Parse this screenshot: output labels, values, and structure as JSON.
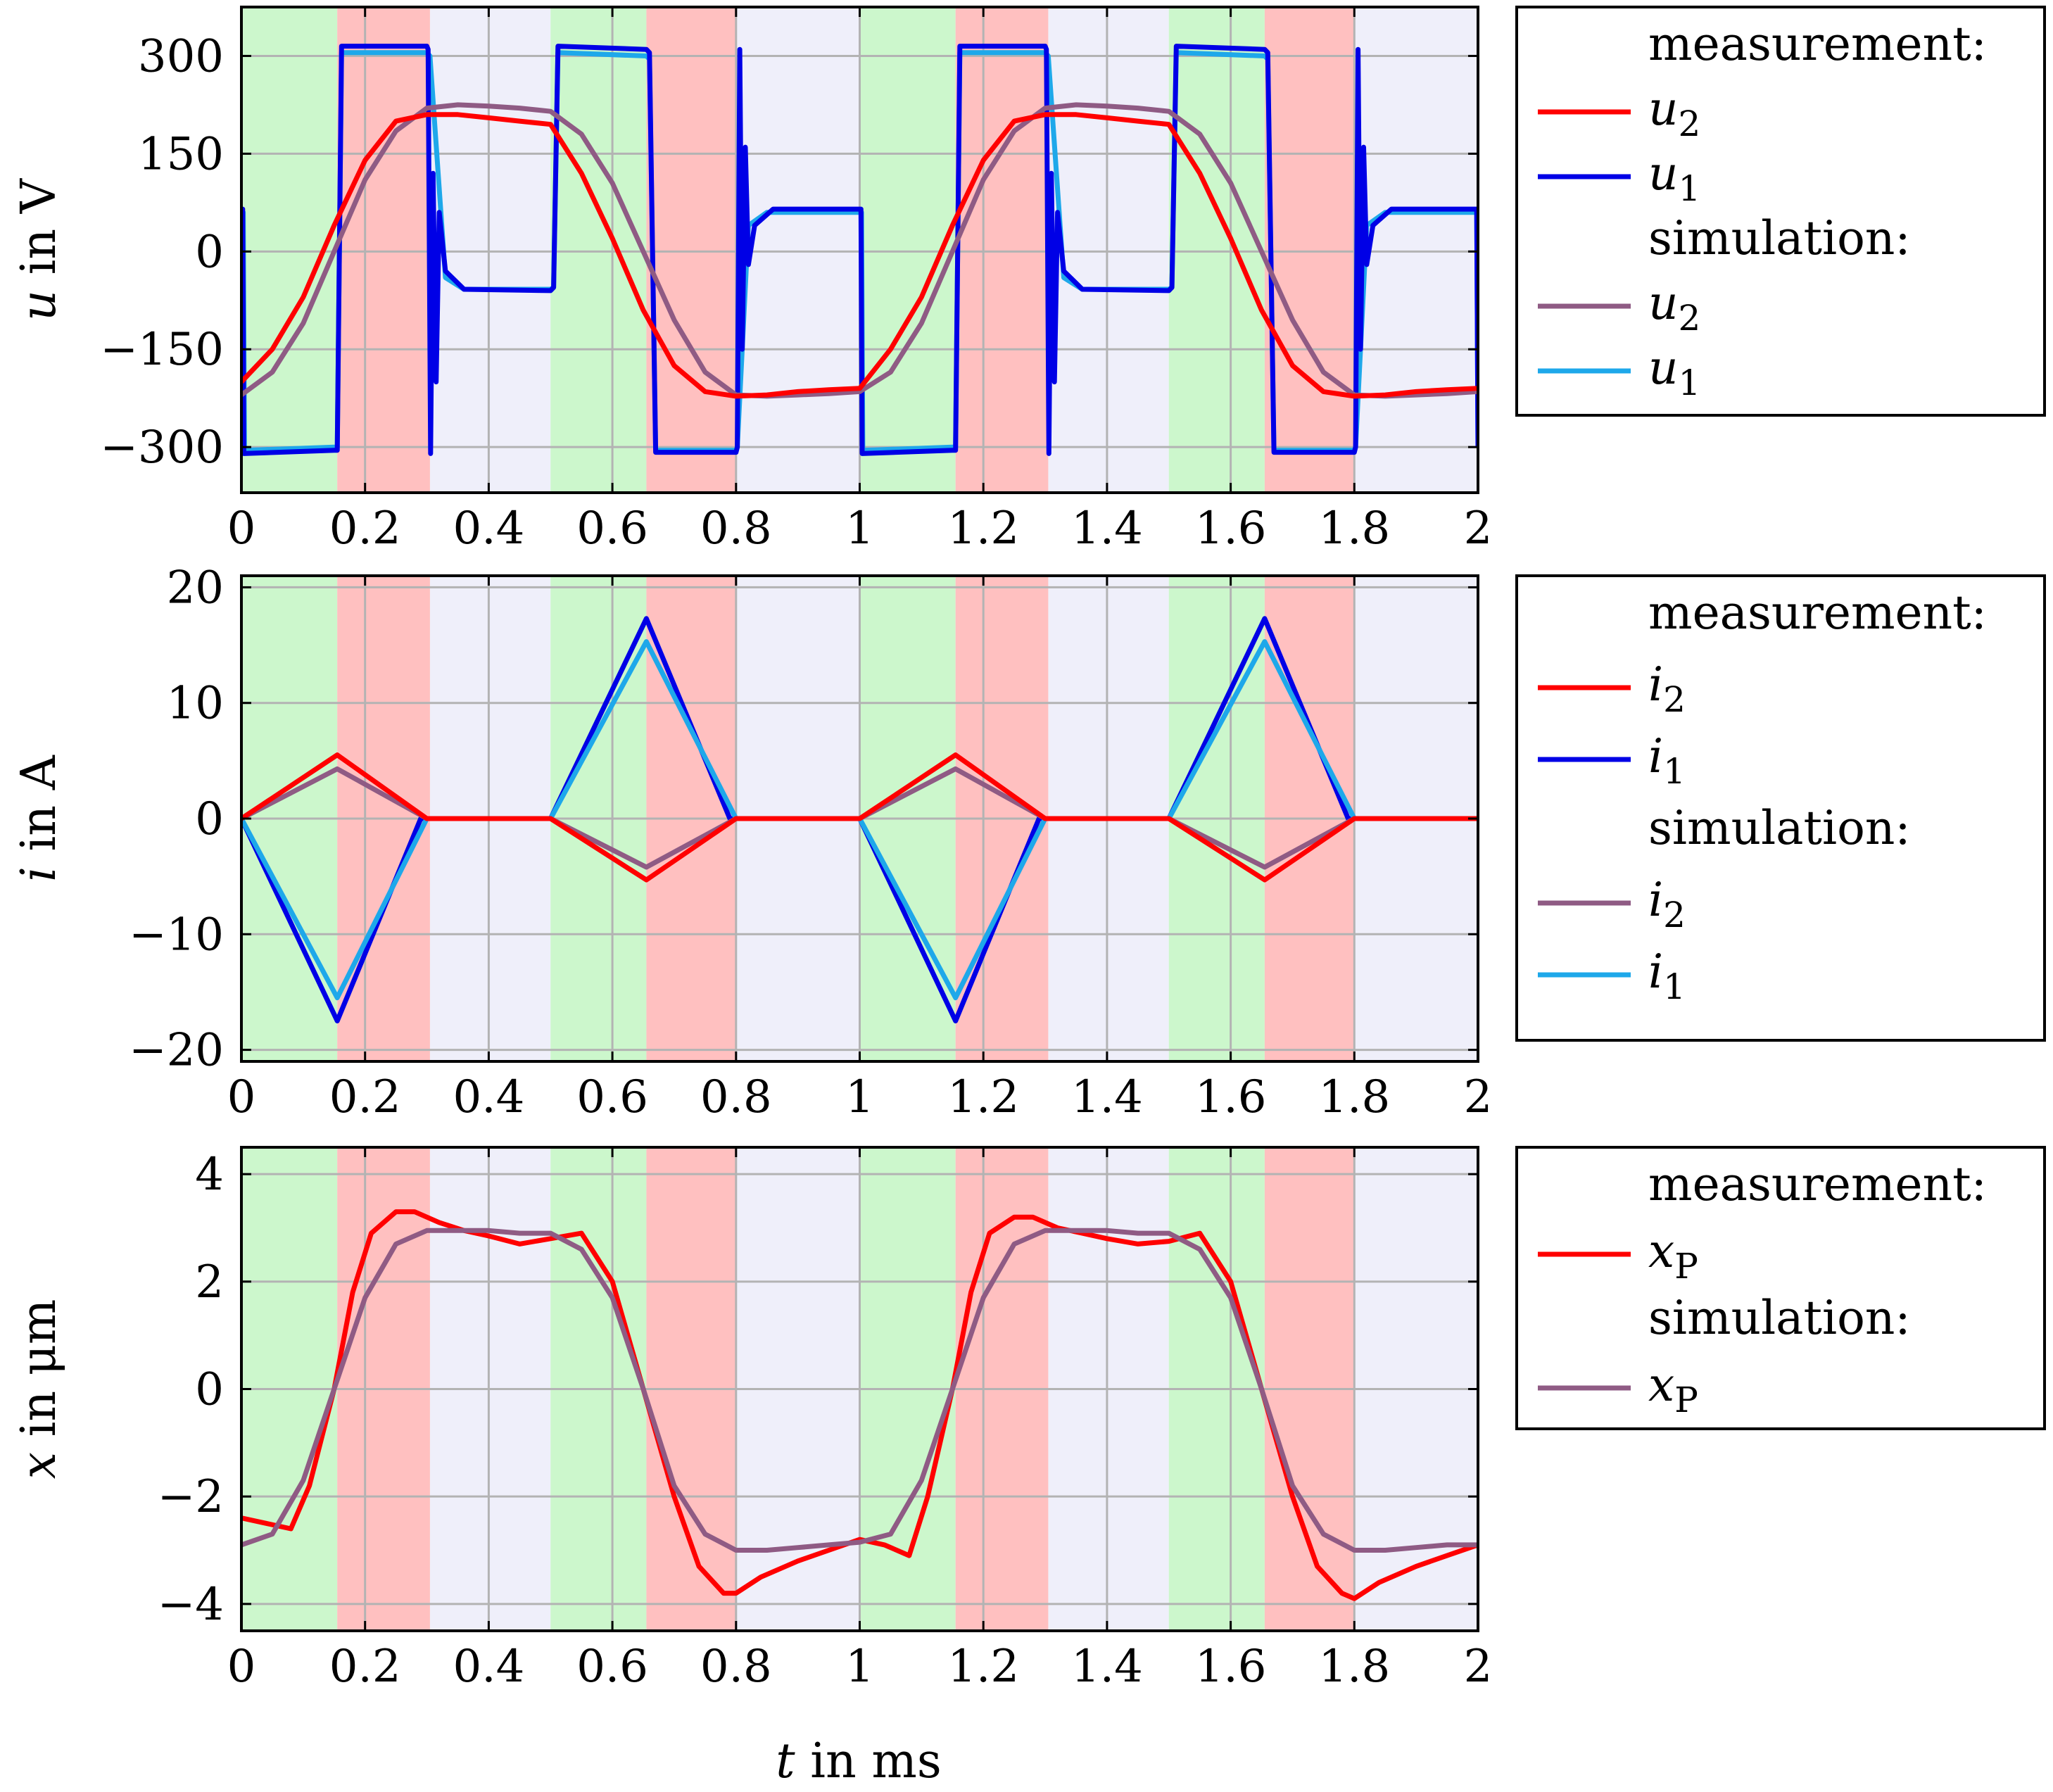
{
  "figure": {
    "xlabel_var": "t",
    "xlabel_unit": " in ms"
  },
  "phases": {
    "period_ms": 1.0,
    "pattern": [
      {
        "name": "green",
        "start": 0.0,
        "end": 0.155,
        "color": "#ccf7cc"
      },
      {
        "name": "red",
        "start": 0.155,
        "end": 0.305,
        "color": "#ffc0c0"
      },
      {
        "name": "lavender",
        "start": 0.305,
        "end": 0.5,
        "color": "#efeffa"
      },
      {
        "name": "green",
        "start": 0.5,
        "end": 0.655,
        "color": "#ccf7cc"
      },
      {
        "name": "red",
        "start": 0.655,
        "end": 0.8,
        "color": "#ffc0c0"
      },
      {
        "name": "lavender",
        "start": 0.8,
        "end": 1.0,
        "color": "#efeffa"
      }
    ]
  },
  "chart_data": [
    {
      "type": "line",
      "id": "voltage",
      "ylabel_var": "u",
      "ylabel_unit": " in V",
      "xlim": [
        0,
        2
      ],
      "ylim": [
        -370,
        375
      ],
      "xticks": [
        0,
        0.2,
        0.4,
        0.6,
        0.8,
        1,
        1.2,
        1.4,
        1.6,
        1.8,
        2
      ],
      "xtick_labels": [
        "0",
        "0.2",
        "0.4",
        "0.6",
        "0.8",
        "1",
        "1.2",
        "1.4",
        "1.6",
        "1.8",
        "2"
      ],
      "yticks": [
        -300,
        -150,
        0,
        150,
        300
      ],
      "ytick_labels": [
        "−300",
        "−150",
        "0",
        "150",
        "300"
      ],
      "legend": {
        "placement": "right",
        "measurement_label": "measurement:",
        "simulation_label": "simulation:",
        "measurement": [
          {
            "sym": "u",
            "sub": "2",
            "color": "#ff0000"
          },
          {
            "sym": "u",
            "sub": "1",
            "color": "#0000e6"
          }
        ],
        "simulation": [
          {
            "sym": "u",
            "sub": "2",
            "color": "#8f5b84"
          },
          {
            "sym": "u",
            "sub": "1",
            "color": "#1ea8ea"
          }
        ]
      },
      "series": [
        {
          "name": "u1 simulation",
          "color": "#1ea8ea",
          "x": [
            0,
            0.003,
            0.005,
            0.15,
            0.155,
            0.162,
            0.3,
            0.305,
            0.33,
            0.36,
            0.5,
            0.505,
            0.512,
            0.655,
            0.66,
            0.67,
            0.8,
            0.802,
            0.82,
            0.85,
            1.0,
            1.003,
            1.005,
            1.15,
            1.155,
            1.162,
            1.3,
            1.305,
            1.33,
            1.36,
            1.5,
            1.505,
            1.512,
            1.655,
            1.66,
            1.67,
            1.8,
            1.802,
            1.82,
            1.85,
            1.998,
            2.0
          ],
          "y": [
            60,
            60,
            -305,
            -300,
            -300,
            305,
            305,
            300,
            -40,
            -58,
            -58,
            -55,
            305,
            300,
            295,
            -305,
            -305,
            -300,
            40,
            60,
            60,
            60,
            -305,
            -300,
            -300,
            305,
            305,
            300,
            -40,
            -58,
            -58,
            -55,
            305,
            300,
            295,
            -305,
            -305,
            -300,
            40,
            60,
            60,
            -300
          ]
        },
        {
          "name": "u1 measurement",
          "color": "#0000e6",
          "x": [
            0,
            0.002,
            0.004,
            0.15,
            0.155,
            0.162,
            0.3,
            0.302,
            0.306,
            0.31,
            0.315,
            0.32,
            0.33,
            0.36,
            0.5,
            0.505,
            0.512,
            0.655,
            0.66,
            0.67,
            0.8,
            0.802,
            0.806,
            0.81,
            0.815,
            0.82,
            0.83,
            0.86,
            1.0,
            1.002,
            1.004,
            1.15,
            1.155,
            1.162,
            1.3,
            1.302,
            1.306,
            1.31,
            1.315,
            1.32,
            1.33,
            1.36,
            1.5,
            1.505,
            1.512,
            1.655,
            1.66,
            1.67,
            1.8,
            1.802,
            1.806,
            1.81,
            1.815,
            1.82,
            1.83,
            1.86,
            1.998,
            2.0
          ],
          "y": [
            65,
            65,
            -310,
            -305,
            -305,
            315,
            315,
            310,
            -310,
            120,
            -200,
            60,
            -30,
            -58,
            -60,
            -55,
            315,
            310,
            305,
            -308,
            -308,
            -300,
            310,
            -150,
            160,
            -20,
            40,
            65,
            65,
            65,
            -310,
            -305,
            -305,
            315,
            315,
            310,
            -310,
            120,
            -200,
            60,
            -30,
            -58,
            -60,
            -55,
            315,
            310,
            305,
            -308,
            -308,
            -300,
            310,
            -150,
            160,
            -20,
            40,
            65,
            65,
            -300
          ]
        },
        {
          "name": "u2 simulation",
          "color": "#8f5b84",
          "x": [
            0,
            0.05,
            0.1,
            0.15,
            0.2,
            0.25,
            0.3,
            0.35,
            0.4,
            0.45,
            0.5,
            0.55,
            0.6,
            0.65,
            0.7,
            0.75,
            0.8,
            0.85,
            0.9,
            0.95,
            1.0,
            1.05,
            1.1,
            1.15,
            1.2,
            1.25,
            1.3,
            1.35,
            1.4,
            1.45,
            1.5,
            1.55,
            1.6,
            1.65,
            1.7,
            1.75,
            1.8,
            1.85,
            1.9,
            1.95,
            2.0
          ],
          "y": [
            -220,
            -185,
            -110,
            0,
            110,
            185,
            220,
            225,
            223,
            220,
            215,
            180,
            105,
            0,
            -105,
            -185,
            -220,
            -222,
            -220,
            -218,
            -215,
            -185,
            -110,
            0,
            110,
            185,
            220,
            225,
            223,
            220,
            215,
            180,
            105,
            0,
            -105,
            -185,
            -220,
            -222,
            -220,
            -218,
            -215
          ]
        },
        {
          "name": "u2 measurement",
          "color": "#ff0000",
          "x": [
            0,
            0.05,
            0.1,
            0.15,
            0.2,
            0.25,
            0.3,
            0.35,
            0.4,
            0.45,
            0.5,
            0.55,
            0.6,
            0.65,
            0.7,
            0.75,
            0.8,
            0.85,
            0.9,
            0.95,
            1.0,
            1.05,
            1.1,
            1.15,
            1.2,
            1.25,
            1.3,
            1.35,
            1.4,
            1.45,
            1.5,
            1.55,
            1.6,
            1.65,
            1.7,
            1.75,
            1.8,
            1.85,
            1.9,
            1.95,
            2.0
          ],
          "y": [
            -200,
            -150,
            -70,
            40,
            140,
            200,
            210,
            210,
            205,
            200,
            195,
            120,
            20,
            -90,
            -175,
            -215,
            -222,
            -220,
            -215,
            -212,
            -210,
            -150,
            -70,
            40,
            140,
            200,
            210,
            210,
            205,
            200,
            195,
            120,
            20,
            -90,
            -175,
            -215,
            -222,
            -220,
            -215,
            -212,
            -210
          ]
        }
      ]
    },
    {
      "type": "line",
      "id": "current",
      "ylabel_var": "i",
      "ylabel_unit": " in A",
      "xlim": [
        0,
        2
      ],
      "ylim": [
        -21,
        21
      ],
      "xticks": [
        0,
        0.2,
        0.4,
        0.6,
        0.8,
        1,
        1.2,
        1.4,
        1.6,
        1.8,
        2
      ],
      "xtick_labels": [
        "0",
        "0.2",
        "0.4",
        "0.6",
        "0.8",
        "1",
        "1.2",
        "1.4",
        "1.6",
        "1.8",
        "2"
      ],
      "yticks": [
        -20,
        -10,
        0,
        10,
        20
      ],
      "ytick_labels": [
        "−20",
        "−10",
        "0",
        "10",
        "20"
      ],
      "legend": {
        "placement": "right",
        "measurement_label": "measurement:",
        "simulation_label": "simulation:",
        "measurement": [
          {
            "sym": "i",
            "sub": "2",
            "color": "#ff0000"
          },
          {
            "sym": "i",
            "sub": "1",
            "color": "#0000e6"
          }
        ],
        "simulation": [
          {
            "sym": "i",
            "sub": "2",
            "color": "#8f5b84"
          },
          {
            "sym": "i",
            "sub": "1",
            "color": "#1ea8ea"
          }
        ]
      },
      "series": [
        {
          "name": "i1 measurement",
          "color": "#0000e6",
          "x": [
            0,
            0.155,
            0.29,
            0.3,
            0.5,
            0.655,
            0.79,
            0.8,
            1.0,
            1.155,
            1.29,
            1.3,
            1.5,
            1.655,
            1.79,
            1.8,
            2.0
          ],
          "y": [
            0,
            -17.5,
            0,
            0,
            0,
            17.3,
            0,
            0,
            0,
            -17.5,
            0,
            0,
            0,
            17.3,
            0,
            0,
            0
          ]
        },
        {
          "name": "i1 simulation",
          "color": "#1ea8ea",
          "x": [
            0,
            0.155,
            0.3,
            0.31,
            0.5,
            0.655,
            0.8,
            0.81,
            1.0,
            1.155,
            1.3,
            1.31,
            1.5,
            1.655,
            1.8,
            1.81,
            2.0
          ],
          "y": [
            0,
            -15.5,
            0,
            0,
            0,
            15.3,
            0,
            0,
            0,
            -15.5,
            0,
            0,
            0,
            15.3,
            0,
            0,
            0
          ]
        },
        {
          "name": "i2 simulation",
          "color": "#8f5b84",
          "x": [
            0,
            0.155,
            0.3,
            0.31,
            0.5,
            0.655,
            0.8,
            0.81,
            1.0,
            1.155,
            1.3,
            1.31,
            1.5,
            1.655,
            1.8,
            1.81,
            2.0
          ],
          "y": [
            0,
            4.3,
            0,
            0,
            0,
            -4.2,
            0,
            0,
            0,
            4.3,
            0,
            0,
            0,
            -4.2,
            0,
            0,
            0
          ]
        },
        {
          "name": "i2 measurement",
          "color": "#ff0000",
          "x": [
            0,
            0.155,
            0.3,
            0.31,
            0.5,
            0.655,
            0.8,
            0.81,
            1.0,
            1.155,
            1.3,
            1.31,
            1.5,
            1.655,
            1.8,
            1.81,
            2.0
          ],
          "y": [
            0,
            5.5,
            0,
            0,
            0,
            -5.3,
            0,
            0,
            0,
            5.5,
            0,
            0,
            0,
            -5.3,
            0,
            0,
            0
          ]
        }
      ]
    },
    {
      "type": "line",
      "id": "displacement",
      "ylabel_var": "x",
      "ylabel_unit": " in μm",
      "xlim": [
        0,
        2
      ],
      "ylim": [
        -4.5,
        4.5
      ],
      "xticks": [
        0,
        0.2,
        0.4,
        0.6,
        0.8,
        1,
        1.2,
        1.4,
        1.6,
        1.8,
        2
      ],
      "xtick_labels": [
        "0",
        "0.2",
        "0.4",
        "0.6",
        "0.8",
        "1",
        "1.2",
        "1.4",
        "1.6",
        "1.8",
        "2"
      ],
      "yticks": [
        -4,
        -2,
        0,
        2,
        4
      ],
      "ytick_labels": [
        "−4",
        "−2",
        "0",
        "2",
        "4"
      ],
      "legend": {
        "placement": "right",
        "measurement_label": "measurement:",
        "simulation_label": "simulation:",
        "measurement": [
          {
            "sym": "x",
            "sub": "P",
            "color": "#ff0000"
          }
        ],
        "simulation": [
          {
            "sym": "x",
            "sub": "P",
            "color": "#8f5b84"
          }
        ]
      },
      "series": [
        {
          "name": "xP measurement",
          "color": "#ff0000",
          "x": [
            0,
            0.04,
            0.08,
            0.11,
            0.15,
            0.18,
            0.21,
            0.25,
            0.28,
            0.32,
            0.36,
            0.4,
            0.45,
            0.5,
            0.55,
            0.6,
            0.65,
            0.7,
            0.74,
            0.78,
            0.8,
            0.84,
            0.9,
            0.95,
            1.0,
            1.04,
            1.08,
            1.11,
            1.15,
            1.18,
            1.21,
            1.25,
            1.28,
            1.32,
            1.36,
            1.4,
            1.45,
            1.5,
            1.55,
            1.6,
            1.65,
            1.7,
            1.74,
            1.78,
            1.8,
            1.84,
            1.9,
            1.95,
            2.0
          ],
          "y": [
            -2.4,
            -2.5,
            -2.6,
            -1.8,
            0,
            1.8,
            2.9,
            3.3,
            3.3,
            3.1,
            2.95,
            2.85,
            2.7,
            2.8,
            2.9,
            2.0,
            0,
            -2.0,
            -3.3,
            -3.8,
            -3.8,
            -3.5,
            -3.2,
            -3.0,
            -2.8,
            -2.9,
            -3.1,
            -2.0,
            0,
            1.8,
            2.9,
            3.2,
            3.2,
            3.0,
            2.9,
            2.8,
            2.7,
            2.75,
            2.9,
            2.0,
            0,
            -2.0,
            -3.3,
            -3.8,
            -3.9,
            -3.6,
            -3.3,
            -3.1,
            -2.9
          ]
        },
        {
          "name": "xP simulation",
          "color": "#8f5b84",
          "x": [
            0,
            0.05,
            0.1,
            0.15,
            0.2,
            0.25,
            0.3,
            0.35,
            0.4,
            0.45,
            0.5,
            0.55,
            0.6,
            0.65,
            0.7,
            0.75,
            0.8,
            0.85,
            0.9,
            0.95,
            1.0,
            1.05,
            1.1,
            1.15,
            1.2,
            1.25,
            1.3,
            1.35,
            1.4,
            1.45,
            1.5,
            1.55,
            1.6,
            1.65,
            1.7,
            1.75,
            1.8,
            1.85,
            1.9,
            1.95,
            2.0
          ],
          "y": [
            -2.9,
            -2.7,
            -1.7,
            0,
            1.7,
            2.7,
            2.95,
            2.95,
            2.95,
            2.9,
            2.9,
            2.6,
            1.7,
            0,
            -1.8,
            -2.7,
            -3.0,
            -3.0,
            -2.95,
            -2.9,
            -2.85,
            -2.7,
            -1.7,
            0,
            1.7,
            2.7,
            2.95,
            2.95,
            2.95,
            2.9,
            2.9,
            2.6,
            1.7,
            0,
            -1.8,
            -2.7,
            -3.0,
            -3.0,
            -2.95,
            -2.9,
            -2.9
          ]
        }
      ]
    }
  ]
}
